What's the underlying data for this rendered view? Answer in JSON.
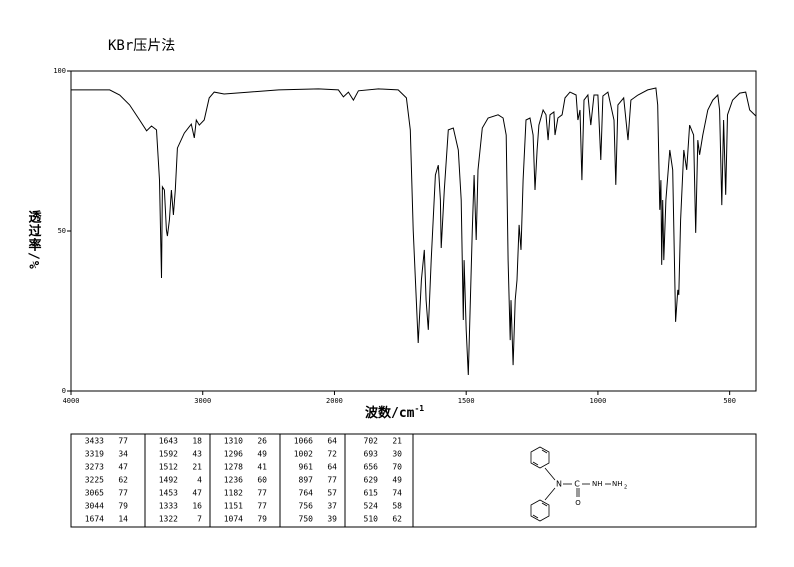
{
  "chart_data": {
    "type": "line",
    "title": "KBr压片法",
    "y_label": "透过率/%",
    "x_label": "波数/cm",
    "x_label_sup": "-1",
    "xlim": [
      4000,
      400
    ],
    "x_break": 2000,
    "ylim": [
      0,
      100
    ],
    "xticks": [
      4000,
      3000,
      2000,
      1500,
      1000,
      500
    ],
    "yticks": [
      0,
      50,
      100
    ],
    "color": "#000000",
    "x": [
      4000,
      3706,
      3630,
      3555,
      3479,
      3426,
      3389,
      3351,
      3328,
      3313,
      3306,
      3291,
      3276,
      3268,
      3253,
      3238,
      3223,
      3208,
      3192,
      3140,
      3087,
      3064,
      3049,
      3026,
      2989,
      2951,
      2913,
      2838,
      2649,
      2423,
      2121,
      1985,
      1966,
      1947,
      1928,
      1909,
      1833,
      1758,
      1727,
      1712,
      1701,
      1682,
      1670,
      1659,
      1652,
      1644,
      1633,
      1617,
      1606,
      1598,
      1595,
      1583,
      1568,
      1549,
      1530,
      1519,
      1511,
      1508,
      1500,
      1492,
      1485,
      1477,
      1470,
      1462,
      1455,
      1439,
      1417,
      1379,
      1360,
      1348,
      1341,
      1333,
      1330,
      1322,
      1314,
      1307,
      1299,
      1292,
      1284,
      1273,
      1258,
      1246,
      1239,
      1231,
      1224,
      1208,
      1197,
      1189,
      1182,
      1167,
      1163,
      1152,
      1136,
      1125,
      1106,
      1083,
      1076,
      1068,
      1061,
      1053,
      1038,
      1027,
      1015,
      1000,
      989,
      981,
      962,
      939,
      932,
      924,
      902,
      886,
      875,
      848,
      811,
      780,
      773,
      765,
      761,
      758,
      754,
      750,
      742,
      727,
      716,
      705,
      697,
      693,
      686,
      674,
      663,
      652,
      637,
      629,
      621,
      614,
      602,
      583,
      564,
      545,
      538,
      530,
      523,
      515,
      508,
      489,
      462,
      439,
      424,
      400
    ],
    "values": [
      94.1,
      94.1,
      92.5,
      89.4,
      84.7,
      81.3,
      82.8,
      81.6,
      65.9,
      35.3,
      63.8,
      62.8,
      50.3,
      48.4,
      53.4,
      62.8,
      55,
      62.8,
      75.9,
      80.6,
      83.4,
      79.1,
      84.7,
      83.1,
      84.7,
      91.6,
      93.4,
      92.8,
      93.4,
      94.1,
      94.4,
      94.1,
      91.9,
      93.4,
      90.9,
      93.8,
      94.4,
      94.1,
      91.6,
      81.6,
      50.3,
      15,
      34.7,
      44.1,
      28.4,
      19.1,
      40.9,
      67.5,
      70.6,
      59.7,
      44.7,
      62.8,
      81.6,
      82.2,
      75.3,
      59.7,
      22.2,
      40.9,
      19.1,
      5,
      25.3,
      50.3,
      67.5,
      47.2,
      69.1,
      82.2,
      85.3,
      86.3,
      85.3,
      80,
      40.9,
      15.9,
      28.4,
      8.1,
      28.4,
      34.7,
      51.9,
      44.1,
      65.9,
      84.7,
      85.3,
      80,
      62.8,
      75.3,
      83.1,
      87.8,
      86.3,
      78.4,
      86.3,
      87.2,
      80,
      85.3,
      86.3,
      91.6,
      93.4,
      92.5,
      84.7,
      87.8,
      65.9,
      90.9,
      92.5,
      83.1,
      92.5,
      92.5,
      72.2,
      92.2,
      93.4,
      84.7,
      64.4,
      89.4,
      91.6,
      78.4,
      90.9,
      92.5,
      94.1,
      94.7,
      89.4,
      56.6,
      65.9,
      39.4,
      59.7,
      40.9,
      59.7,
      75.3,
      69.1,
      21.6,
      31.6,
      30,
      53.4,
      75.3,
      69.1,
      83.1,
      80,
      49.4,
      78.4,
      73.8,
      80,
      87.8,
      90.9,
      92.5,
      87.8,
      58.1,
      84.7,
      61.3,
      86.3,
      90.9,
      93.1,
      93.4,
      87.8,
      85.9
    ]
  },
  "peak_table": [
    [
      [
        3433,
        77
      ],
      [
        3319,
        34
      ],
      [
        3273,
        47
      ],
      [
        3225,
        62
      ],
      [
        3065,
        77
      ],
      [
        3044,
        79
      ],
      [
        1674,
        14
      ]
    ],
    [
      [
        1643,
        18
      ],
      [
        1592,
        43
      ],
      [
        1512,
        21
      ],
      [
        1492,
        4
      ],
      [
        1453,
        47
      ],
      [
        1333,
        16
      ],
      [
        1322,
        7
      ]
    ],
    [
      [
        1310,
        26
      ],
      [
        1296,
        49
      ],
      [
        1278,
        41
      ],
      [
        1236,
        60
      ],
      [
        1182,
        77
      ],
      [
        1151,
        77
      ],
      [
        1074,
        79
      ]
    ],
    [
      [
        1066,
        64
      ],
      [
        1002,
        72
      ],
      [
        961,
        64
      ],
      [
        897,
        77
      ],
      [
        764,
        57
      ],
      [
        756,
        37
      ],
      [
        750,
        39
      ]
    ],
    [
      [
        702,
        21
      ],
      [
        693,
        30
      ],
      [
        656,
        70
      ],
      [
        629,
        49
      ],
      [
        615,
        74
      ],
      [
        524,
        58
      ],
      [
        510,
        62
      ]
    ]
  ],
  "structure": {
    "labels": [
      "N",
      "C",
      "O",
      "NH",
      "NH",
      "2"
    ]
  }
}
